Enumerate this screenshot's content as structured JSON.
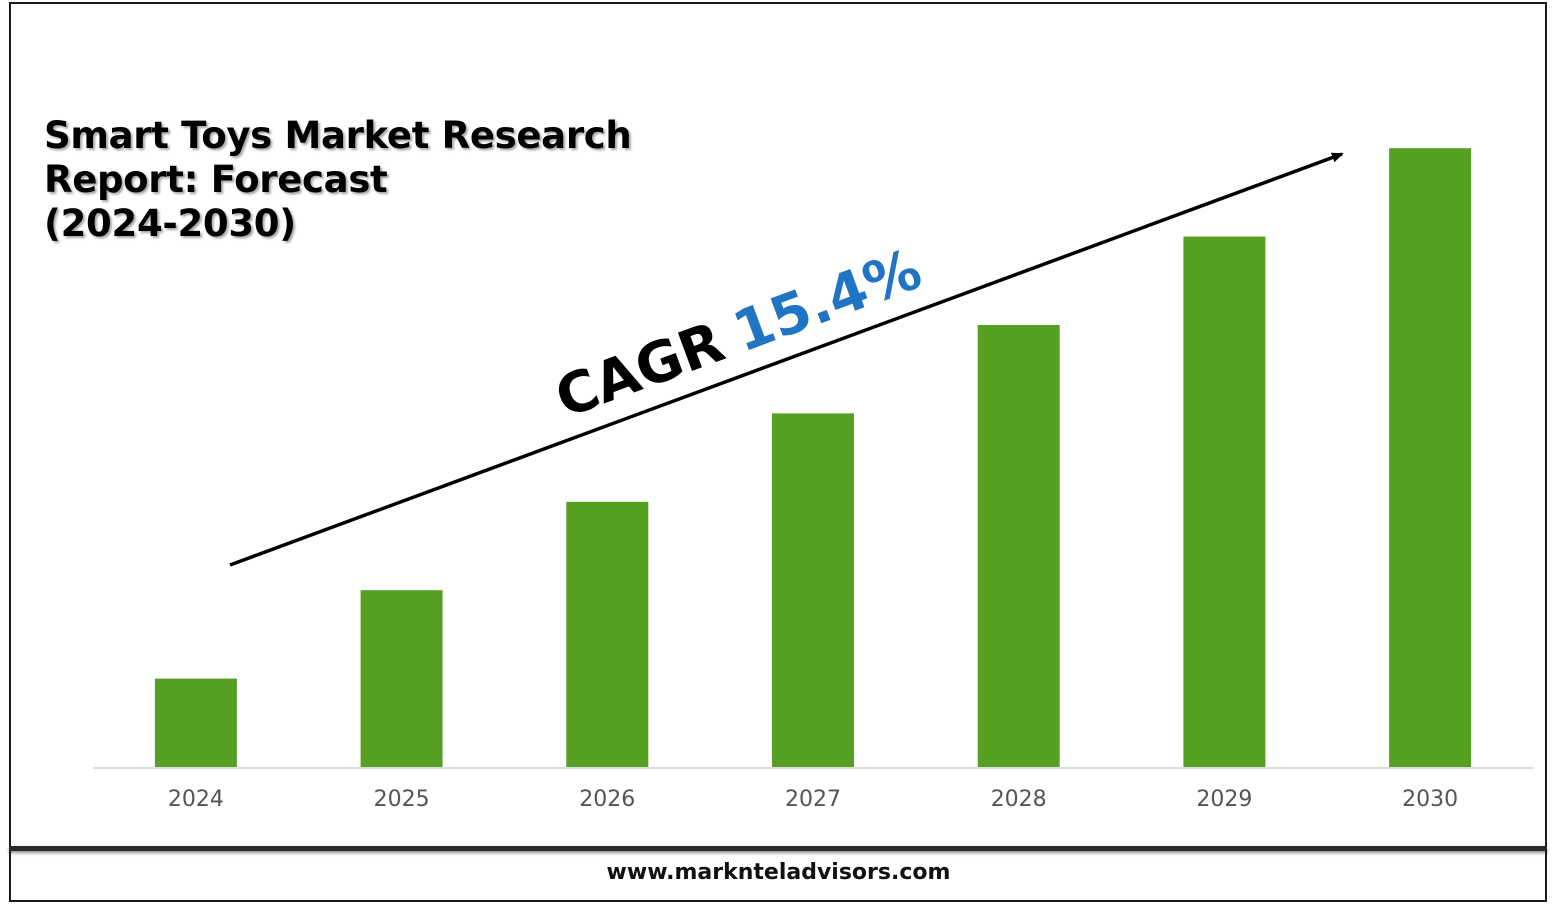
{
  "title_lines": [
    "Smart Toys Market Research",
    "Report: Forecast",
    "(2024-2030)"
  ],
  "chart_data": {
    "type": "bar",
    "categories": [
      "2024",
      "2025",
      "2026",
      "2027",
      "2028",
      "2029",
      "2030"
    ],
    "values": [
      1.0,
      2.0,
      3.0,
      4.0,
      5.0,
      6.0,
      7.0
    ],
    "ylim": [
      0,
      7.5
    ],
    "grid": false,
    "bar_color": "#55a023",
    "annotation": {
      "prefix": "CAGR",
      "value": "15.4%",
      "prefix_color": "#000000",
      "value_color": "#1f74c4"
    }
  },
  "footer": {
    "url": "www.marknteladvisors.com"
  }
}
